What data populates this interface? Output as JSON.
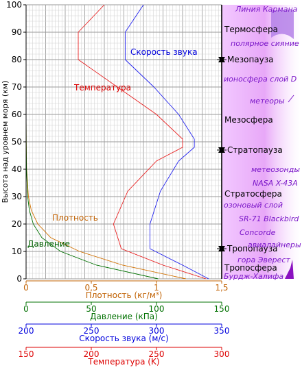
{
  "chart_data": {
    "type": "line",
    "ylabel": "Высота над уровнем моря (км)",
    "ylim": [
      0,
      100
    ],
    "yticks": [
      0,
      10,
      20,
      30,
      40,
      50,
      60,
      70,
      80,
      90,
      100
    ],
    "grid": true,
    "x_axes": [
      {
        "key": "density",
        "label": "Плотность (кг/м³)",
        "range": [
          0,
          1.5
        ],
        "ticks": [
          0,
          0.5,
          1,
          1.5
        ],
        "tick_labels": [
          "0",
          "0,5",
          "1",
          "1,5"
        ],
        "color": "#c06000"
      },
      {
        "key": "pressure",
        "label": "Давление (кПа)",
        "range": [
          0,
          150
        ],
        "ticks": [
          0,
          50,
          100,
          150
        ],
        "tick_labels": [
          "0",
          "50",
          "100",
          "150"
        ],
        "color": "#007000"
      },
      {
        "key": "sound",
        "label": "Скорость звука (м/с)",
        "range": [
          200,
          350
        ],
        "ticks": [
          200,
          250,
          300,
          350
        ],
        "tick_labels": [
          "200",
          "250",
          "300",
          "350"
        ],
        "color": "#0000dd"
      },
      {
        "key": "temperature",
        "label": "Температура (K)",
        "range": [
          150,
          300
        ],
        "ticks": [
          150,
          200,
          250,
          300
        ],
        "tick_labels": [
          "150",
          "200",
          "250",
          "300"
        ],
        "color": "#dd0000"
      }
    ],
    "series": [
      {
        "name": "Температура",
        "axis": "temperature",
        "color": "#e82020",
        "points": [
          [
            288,
            0
          ],
          [
            255,
            5
          ],
          [
            223,
            11
          ],
          [
            217,
            20
          ],
          [
            228,
            32
          ],
          [
            250,
            43
          ],
          [
            270,
            48
          ],
          [
            270,
            51
          ],
          [
            250,
            60
          ],
          [
            220,
            70
          ],
          [
            190,
            80
          ],
          [
            190,
            90
          ],
          [
            200,
            95
          ],
          [
            210,
            100
          ]
        ]
      },
      {
        "name": "Скорость звука",
        "axis": "sound",
        "color": "#2222ee",
        "points": [
          [
            340,
            0
          ],
          [
            320,
            5
          ],
          [
            295,
            11
          ],
          [
            295,
            20
          ],
          [
            303,
            32
          ],
          [
            317,
            43
          ],
          [
            329,
            48
          ],
          [
            329,
            51
          ],
          [
            317,
            60
          ],
          [
            298,
            70
          ],
          [
            276,
            80
          ],
          [
            276,
            90
          ],
          [
            283,
            95
          ],
          [
            290,
            100
          ]
        ]
      },
      {
        "name": "Плотность",
        "axis": "density",
        "color": "#d07000",
        "points": [
          [
            1.225,
            0
          ],
          [
            0.74,
            5
          ],
          [
            0.41,
            10
          ],
          [
            0.19,
            15
          ],
          [
            0.09,
            20
          ],
          [
            0.04,
            25
          ],
          [
            0.018,
            30
          ],
          [
            0.004,
            40
          ],
          [
            0.001,
            50
          ],
          [
            0,
            60
          ],
          [
            0,
            100
          ]
        ]
      },
      {
        "name": "Давление",
        "axis": "pressure",
        "color": "#007000",
        "points": [
          [
            101.3,
            0
          ],
          [
            54,
            5
          ],
          [
            26.5,
            10
          ],
          [
            12.1,
            15
          ],
          [
            5.5,
            20
          ],
          [
            2.5,
            25
          ],
          [
            1.2,
            30
          ],
          [
            0.29,
            40
          ],
          [
            0.08,
            50
          ],
          [
            0.02,
            60
          ],
          [
            0,
            70
          ],
          [
            0,
            100
          ]
        ]
      }
    ],
    "series_labels": [
      {
        "text": "Скорость звука",
        "color": "#0000dd"
      },
      {
        "text": "Температура",
        "color": "#dd0000"
      },
      {
        "text": "Плотность",
        "color": "#c06000"
      },
      {
        "text": "Давление",
        "color": "#006000"
      }
    ],
    "layers": [
      {
        "text": "Термосфера",
        "alt": 91
      },
      {
        "text": "Мезопауза",
        "alt": 80,
        "marker": true
      },
      {
        "text": "Мезосфера",
        "alt": 58
      },
      {
        "text": "Стратопауза",
        "alt": 47,
        "marker": true
      },
      {
        "text": "Стратосфера",
        "alt": 31
      },
      {
        "text": "Тропопауза",
        "alt": 11,
        "marker": true
      },
      {
        "text": "Тропосфера",
        "alt": 4
      }
    ],
    "annotations": [
      {
        "text": "Линия Кармана",
        "alt": 100
      },
      {
        "text": "полярное сияние",
        "alt": 86
      },
      {
        "text": "ионосфера слой D",
        "alt": 73
      },
      {
        "text": "метеоры",
        "alt": 65
      },
      {
        "text": "метеозонды",
        "alt": 40
      },
      {
        "text": "NASA X-43A",
        "alt": 35
      },
      {
        "text": "озоновый слой",
        "alt": 27
      },
      {
        "text": "SR-71 Blackbird",
        "alt": 22
      },
      {
        "text": "Concorde",
        "alt": 17
      },
      {
        "text": "авиалайнеры",
        "alt": 12.5
      },
      {
        "text": "гора Эверест",
        "alt": 7
      },
      {
        "text": "Бурдж-Халифа",
        "alt": 1
      }
    ]
  }
}
